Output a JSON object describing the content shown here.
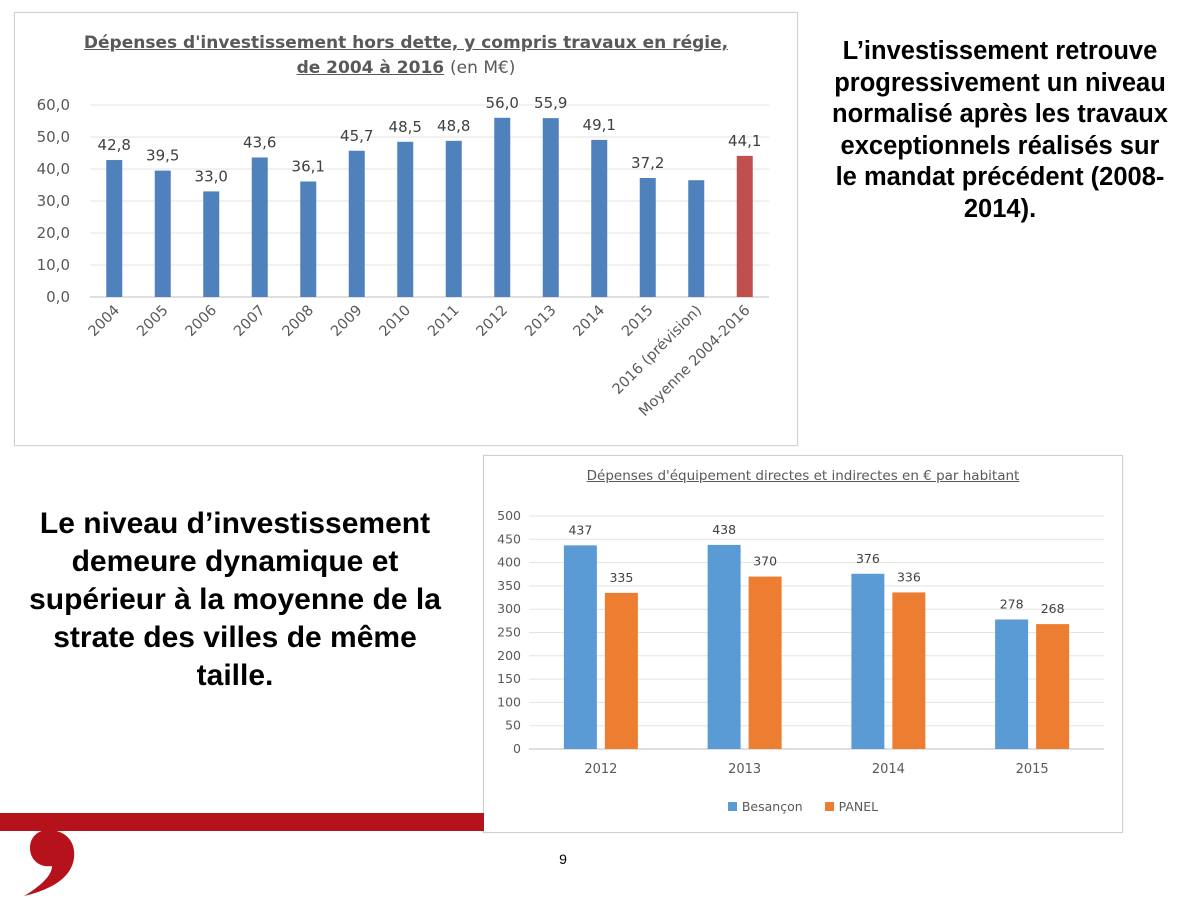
{
  "slide": {
    "text_right": "L’investissement retrouve progressivement un niveau normalisé après les travaux exceptionnels réalisés sur le mandat précédent (2008-2014).",
    "text_left": "Le niveau d’investissement demeure dynamique et supérieur à la moyenne de la strate des villes de même taille.",
    "page_number": "9"
  },
  "colors": {
    "bar_blue": "#4f81bd",
    "bar_red": "#c0504d",
    "besancon": "#5b9bd5",
    "panel": "#ed7d31",
    "brand_red": "#b5121b"
  },
  "chart_data": [
    {
      "type": "bar",
      "title": "Dépenses d'investissement hors dette, y compris travaux en régie, de 2004 à 2016",
      "title_unit": "(en M€)",
      "categories": [
        "2004",
        "2005",
        "2006",
        "2007",
        "2008",
        "2009",
        "2010",
        "2011",
        "2012",
        "2013",
        "2014",
        "2015",
        "2016 (prévision)",
        "Moyenne 2004-2016"
      ],
      "values": [
        42.8,
        39.5,
        33.0,
        43.6,
        36.1,
        45.7,
        48.5,
        48.8,
        56.0,
        55.9,
        49.1,
        37.2,
        36.5,
        44.1
      ],
      "data_labels": [
        "42,8",
        "39,5",
        "33,0",
        "43,6",
        "36,1",
        "45,7",
        "48,5",
        "48,8",
        "56,0",
        "55,9",
        "49,1",
        "37,2",
        "",
        "44,1"
      ],
      "highlight_index": 13,
      "ylim": [
        0,
        60
      ],
      "yticks": [
        "0,0",
        "10,0",
        "20,0",
        "30,0",
        "40,0",
        "50,0",
        "60,0"
      ],
      "grid": true,
      "xlabel": "",
      "ylabel": ""
    },
    {
      "type": "bar",
      "title": "Dépenses d'équipement directes et indirectes en € par habitant",
      "categories": [
        "2012",
        "2013",
        "2014",
        "2015"
      ],
      "series": [
        {
          "name": "Besançon",
          "values": [
            437,
            438,
            376,
            278
          ]
        },
        {
          "name": "PANEL",
          "values": [
            335,
            370,
            336,
            268
          ]
        }
      ],
      "ylim": [
        0,
        500
      ],
      "yticks": [
        "0",
        "50",
        "100",
        "150",
        "200",
        "250",
        "300",
        "350",
        "400",
        "450",
        "500"
      ],
      "grid": true,
      "legend_position": "bottom",
      "xlabel": "",
      "ylabel": ""
    }
  ]
}
